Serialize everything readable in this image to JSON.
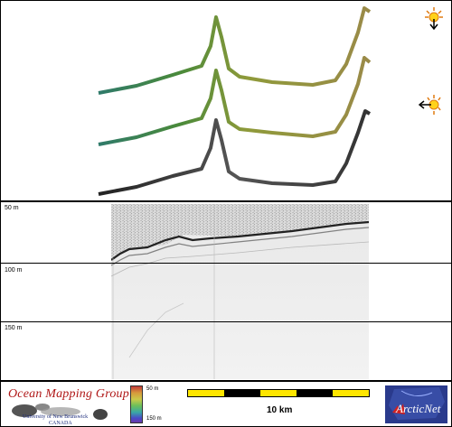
{
  "profile": {
    "depth_labels": [
      "50 m",
      "100 m",
      "150 m"
    ]
  },
  "footer": {
    "logo_title": "Ocean Mapping Group",
    "logo_university": "University of New Brunswick",
    "logo_country": "CANADA",
    "colorbar_top_label": "50 m",
    "colorbar_bottom_label": "150 m",
    "scale_label": "10 km",
    "partner_logo_text": "ArcticNet"
  },
  "icons": {
    "light_down": "sun-with-down-arrow-icon",
    "light_left": "sun-with-left-arrow-icon"
  },
  "colors": {
    "track_green": "#3f7a3a",
    "track_olive": "#8f8a3a",
    "track_gray": "#333333",
    "scale_yellow": "#ffe600",
    "scale_black": "#000000"
  }
}
